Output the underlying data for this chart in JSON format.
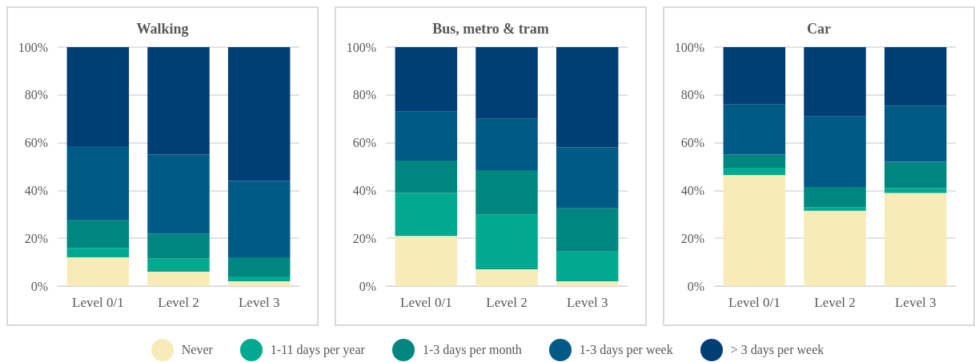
{
  "chart_data": [
    {
      "type": "bar",
      "stacked": true,
      "title": "Walking",
      "categories": [
        "Level 0/1",
        "Level 2",
        "Level 3"
      ],
      "ylim": [
        0,
        100
      ],
      "yticks": [
        {
          "value": 0,
          "label": "0%"
        },
        {
          "value": 20,
          "label": "20%"
        },
        {
          "value": 40,
          "label": "40%"
        },
        {
          "value": 60,
          "label": "60%"
        },
        {
          "value": 80,
          "label": "80%"
        },
        {
          "value": 100,
          "label": "100%"
        }
      ],
      "grid": "y",
      "legend": "bottom",
      "series": [
        {
          "name": "Never",
          "color": "#f7ebb9",
          "values": [
            12,
            6,
            2
          ]
        },
        {
          "name": "1-11 days per year",
          "color": "#00a98f",
          "values": [
            4,
            5.5,
            2
          ]
        },
        {
          "name": "1-3 days per month",
          "color": "#00857f",
          "values": [
            11.5,
            10.5,
            8
          ]
        },
        {
          "name": "1-3 days per week",
          "color": "#005a85",
          "values": [
            31,
            33,
            32
          ]
        },
        {
          "name": "> 3 days per week",
          "color": "#003f75",
          "values": [
            41.5,
            45,
            56
          ]
        }
      ]
    },
    {
      "type": "bar",
      "stacked": true,
      "title": "Bus, metro & tram",
      "categories": [
        "Level 0/1",
        "Level 2",
        "Level 3"
      ],
      "ylim": [
        0,
        100
      ],
      "yticks": [
        {
          "value": 0,
          "label": "0%"
        },
        {
          "value": 20,
          "label": "20%"
        },
        {
          "value": 40,
          "label": "40%"
        },
        {
          "value": 60,
          "label": "60%"
        },
        {
          "value": 80,
          "label": "80%"
        },
        {
          "value": 100,
          "label": "100%"
        }
      ],
      "grid": "y",
      "series": [
        {
          "color": "#f7ebb9",
          "values": [
            21,
            7,
            2
          ]
        },
        {
          "color": "#00a98f",
          "values": [
            18,
            23,
            12.5
          ]
        },
        {
          "color": "#00857f",
          "values": [
            13.5,
            18.5,
            18
          ]
        },
        {
          "color": "#005a85",
          "values": [
            20.5,
            21.5,
            25.5
          ]
        },
        {
          "color": "#003f75",
          "values": [
            27,
            30,
            42
          ]
        }
      ]
    },
    {
      "type": "bar",
      "stacked": true,
      "title": "Car",
      "categories": [
        "Level 0/1",
        "Level 2",
        "Level 3"
      ],
      "ylim": [
        0,
        100
      ],
      "yticks": [
        {
          "value": 0,
          "label": "0%"
        },
        {
          "value": 20,
          "label": "20%"
        },
        {
          "value": 40,
          "label": "40%"
        },
        {
          "value": 60,
          "label": "60%"
        },
        {
          "value": 80,
          "label": "80%"
        },
        {
          "value": 100,
          "label": "100%"
        }
      ],
      "grid": "y",
      "series": [
        {
          "color": "#f7ebb9",
          "values": [
            46.5,
            31.5,
            39
          ]
        },
        {
          "color": "#00a98f",
          "values": [
            3,
            1.5,
            2
          ]
        },
        {
          "color": "#00857f",
          "values": [
            5.5,
            8.5,
            11
          ]
        },
        {
          "color": "#005a85",
          "values": [
            21,
            29.5,
            23.5
          ]
        },
        {
          "color": "#003f75",
          "values": [
            24,
            29,
            24.5
          ]
        }
      ]
    }
  ]
}
